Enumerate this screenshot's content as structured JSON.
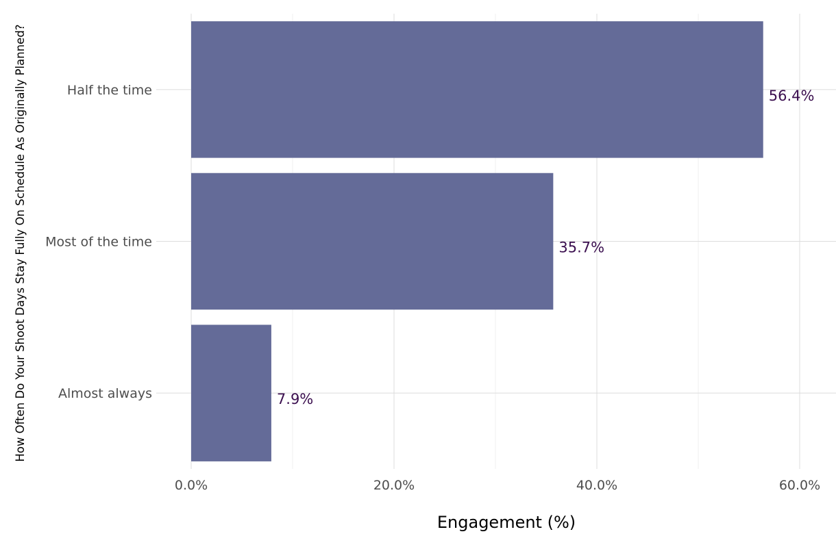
{
  "chart_data": {
    "type": "bar",
    "orientation": "horizontal",
    "categories": [
      "Half the time",
      "Most of the time",
      "Almost always"
    ],
    "values": [
      56.4,
      35.7,
      7.9
    ],
    "value_labels": [
      "56.4%",
      "35.7%",
      "7.9%"
    ],
    "xlabel": "Engagement (%)",
    "ylabel": "How Often Do Your Shoot Days Stay Fully On Schedule As Originally Planned?",
    "xlim": [
      0,
      63
    ],
    "x_ticks": [
      0,
      20,
      40,
      60
    ],
    "x_tick_labels": [
      "0.0%",
      "20.0%",
      "40.0%",
      "60.0%"
    ],
    "grid": true,
    "legend": "none",
    "colors": {
      "bar": "#646b98",
      "data_label": "#3b0f4f",
      "grid_major": "#dcdcdc",
      "grid_minor": "#efefef",
      "tick_label": "#4d4d4d"
    }
  }
}
